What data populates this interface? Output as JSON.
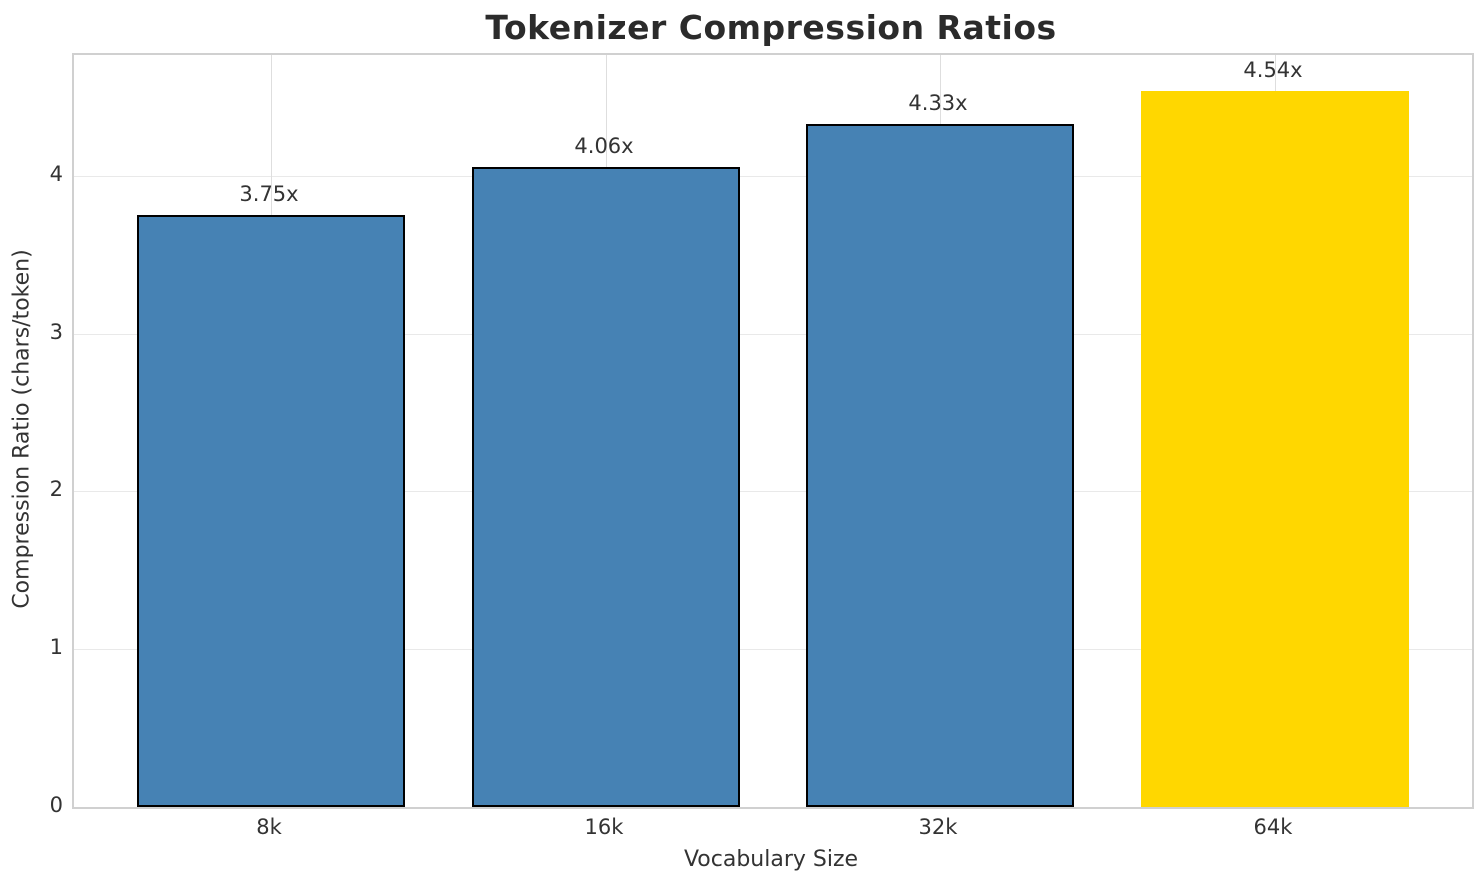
{
  "chart_data": {
    "type": "bar",
    "title": "Tokenizer Compression Ratios",
    "xlabel": "Vocabulary Size",
    "ylabel": "Compression Ratio (chars/token)",
    "categories": [
      "8k",
      "16k",
      "32k",
      "64k"
    ],
    "values": [
      3.75,
      4.06,
      4.33,
      4.54
    ],
    "value_labels": [
      "3.75x",
      "4.06x",
      "4.33x",
      "4.54x"
    ],
    "bar_colors": [
      "#4682B4",
      "#4682B4",
      "#4682B4",
      "#FFD700"
    ],
    "bar_edge_colors": [
      "#000000",
      "#000000",
      "#000000",
      "none"
    ],
    "yticks": [
      0,
      1,
      2,
      3,
      4
    ],
    "ylim": [
      0,
      4.767
    ],
    "grid": true,
    "legend": "none",
    "accent_color": "#4682B4",
    "highlight_color": "#FFD700"
  }
}
